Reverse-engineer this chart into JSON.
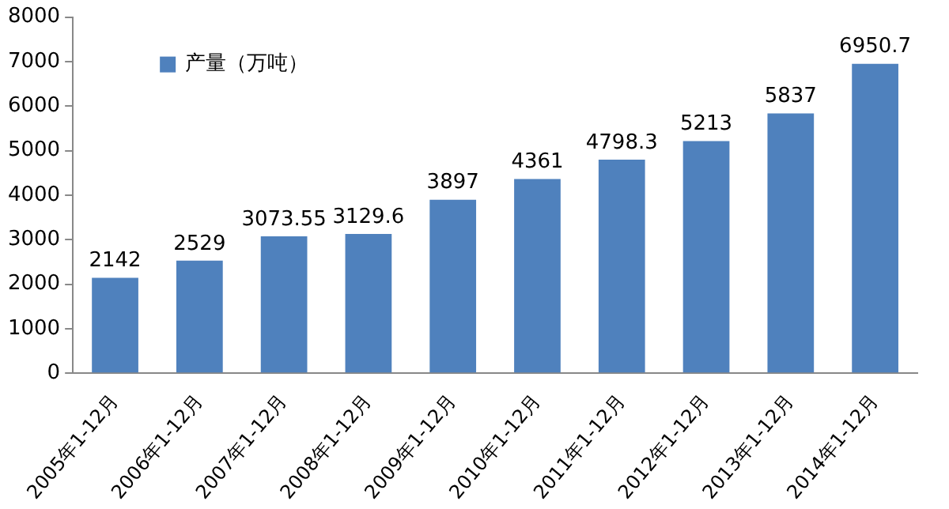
{
  "chart_data": {
    "type": "bar",
    "categories": [
      "2005年1-12月",
      "2006年1-12月",
      "2007年1-12月",
      "2008年1-12月",
      "2009年1-12月",
      "2010年1-12月",
      "2011年1-12月",
      "2012年1-12月",
      "2013年1-12月",
      "2014年1-12月"
    ],
    "series": [
      {
        "name": "产量（万吨）",
        "color": "#4f81bd",
        "values": [
          2142,
          2529,
          3073.55,
          3129.6,
          3897,
          4361,
          4798.3,
          5213,
          5837,
          6950.7
        ]
      }
    ],
    "ylim": [
      0,
      8000
    ],
    "yticks": [
      0,
      1000,
      2000,
      3000,
      4000,
      5000,
      6000,
      7000,
      8000
    ],
    "grid": false,
    "legend": "top left",
    "data_labels": true
  }
}
